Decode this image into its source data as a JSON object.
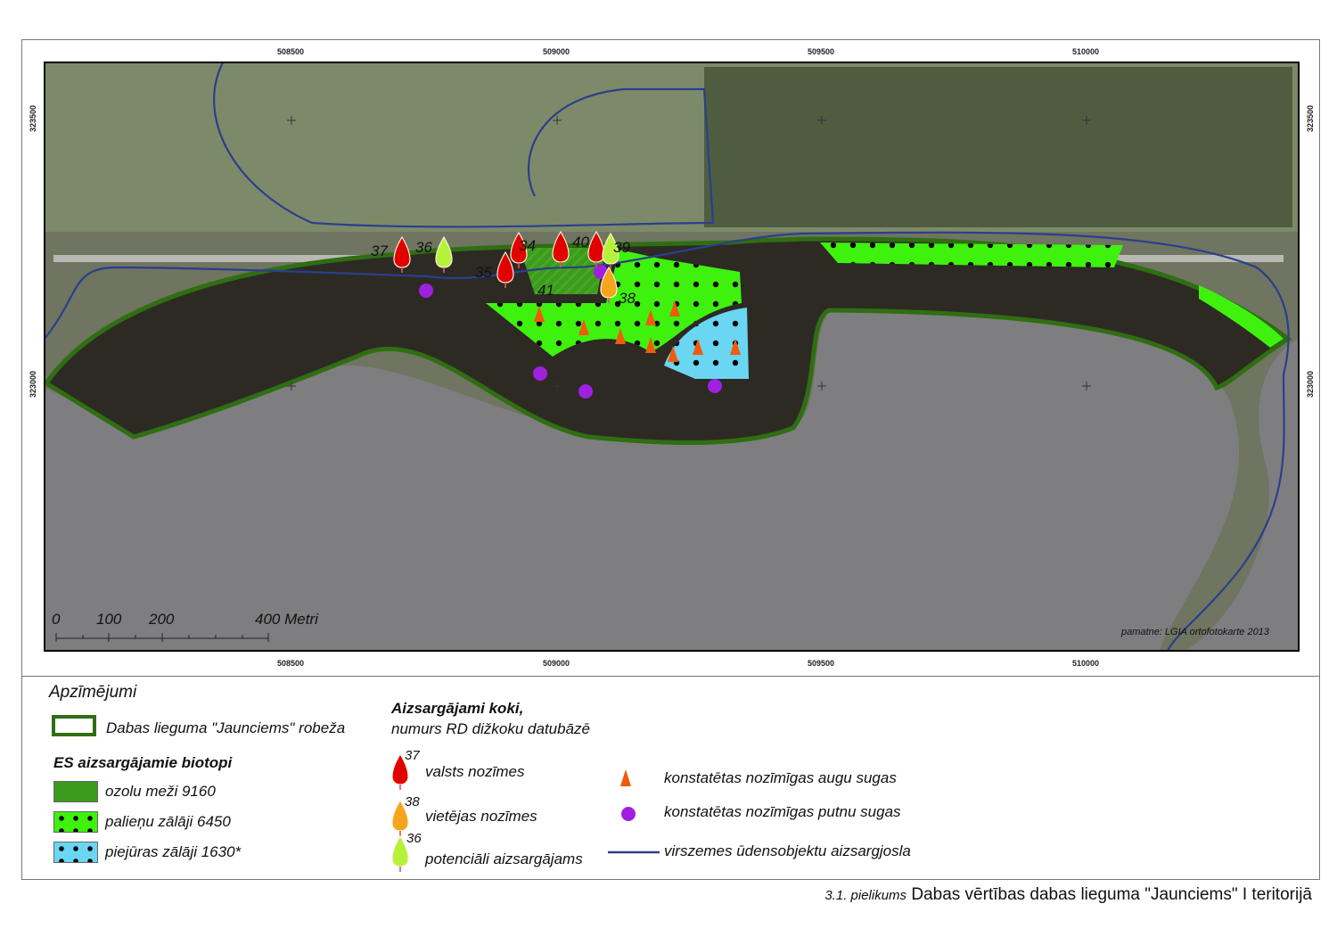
{
  "map": {
    "x_ticks": [
      "508500",
      "509000",
      "509500",
      "510000"
    ],
    "y_ticks": [
      "323500",
      "323000"
    ],
    "scale_bar": {
      "labels": [
        "0",
        "100",
        "200",
        "400 Metri"
      ]
    },
    "source_note": "pamatne: LGIA ortofotokarte 2013",
    "tree_labels": [
      "37",
      "36",
      "35",
      "34",
      "40",
      "39",
      "38",
      "41"
    ],
    "colors": {
      "boundary": "#2f6e12",
      "oak_forest": "#3c9a1c",
      "floodplain_meadow": "#3ef20e",
      "coastal_meadow": "#6ad6f2",
      "tree_national": "#e00000",
      "tree_local": "#f5a51c",
      "tree_potential": "#b6f23a",
      "plant_species": "#f05a0a",
      "bird_species": "#a020e0",
      "water_zone": "#2b3f8c",
      "water": "#7d7d80"
    }
  },
  "legend": {
    "title": "Apzīmējumi",
    "boundary": "Dabas lieguma \"Jaunciems\" robeža",
    "habitats_title": "ES aizsargājamie biotopi",
    "habitats": [
      "ozolu meži 9160",
      "palieņu zālāji 6450",
      "piejūras zālāji 1630*"
    ],
    "trees_title": "Aizsargājami koki,",
    "trees_subtitle": "numurs RD dižkoku datubāzē",
    "trees": [
      {
        "num": "37",
        "label": "valsts nozīmes"
      },
      {
        "num": "38",
        "label": "vietējas nozīmes"
      },
      {
        "num": "36",
        "label": "potenciāli aizsargājams"
      }
    ],
    "plants": "konstatētas nozīmīgas augu sugas",
    "birds": "konstatētas nozīmīgas putnu sugas",
    "water_zone": "virszemes ūdensobjektu aizsargjosla"
  },
  "footer": {
    "annex": "3.1. pielikums",
    "title": "Dabas vērtības dabas lieguma \"Jaunciems\" I teritorijā"
  }
}
